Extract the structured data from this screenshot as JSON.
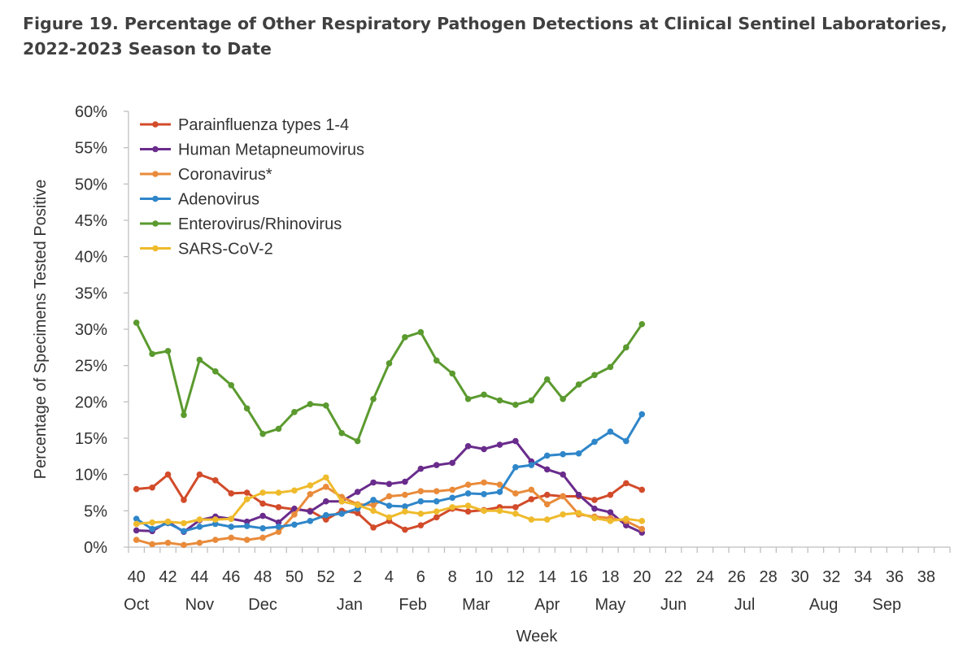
{
  "title_line1": "Figure 19. Percentage of Other Respiratory Pathogen Detections at Clinical Sentinel Laboratories,",
  "title_line2": "2022-2023 Season to Date",
  "chart_data": {
    "type": "line",
    "title": "Figure 19. Percentage of Other Respiratory Pathogen Detections at Clinical Sentinel Laboratories, 2022-2023 Season to Date",
    "xlabel": "Week",
    "ylabel": "Percentage of Specimens Tested Positive",
    "ylim": [
      0,
      60
    ],
    "y_ticks": [
      "0%",
      "5%",
      "10%",
      "15%",
      "20%",
      "25%",
      "30%",
      "35%",
      "40%",
      "45%",
      "50%",
      "55%",
      "60%"
    ],
    "x_weeks": [
      40,
      41,
      42,
      43,
      44,
      45,
      46,
      47,
      48,
      49,
      50,
      51,
      52,
      1,
      2,
      3,
      4,
      5,
      6,
      7,
      8,
      9,
      10,
      11,
      12,
      13,
      14,
      15,
      16,
      17,
      18,
      19,
      20
    ],
    "x_tick_labels": [
      "40",
      "42",
      "44",
      "46",
      "48",
      "50",
      "52",
      "2",
      "4",
      "6",
      "8",
      "10",
      "12",
      "14",
      "16",
      "18",
      "20",
      "22",
      "24",
      "26",
      "28",
      "30",
      "32",
      "34",
      "36",
      "38"
    ],
    "month_labels": [
      "Oct",
      "Nov",
      "Dec",
      "Jan",
      "Feb",
      "Mar",
      "Apr",
      "May",
      "Jun",
      "Jul",
      "Aug",
      "Sep"
    ],
    "legend_position": "top-left",
    "grid": false,
    "series": [
      {
        "name": "Parainfluenza types 1-4",
        "color": "#d24b2a",
        "values": [
          8.0,
          8.2,
          10.0,
          6.5,
          10.0,
          9.2,
          7.4,
          7.5,
          6.0,
          5.5,
          5.2,
          5.0,
          3.8,
          5.0,
          4.7,
          2.7,
          3.6,
          2.4,
          3.0,
          4.1,
          5.3,
          4.9,
          5.1,
          5.5,
          5.5,
          6.6,
          7.2,
          7.0,
          7.0,
          6.5,
          7.2,
          8.8,
          7.9
        ]
      },
      {
        "name": "Human Metapneumovirus",
        "color": "#6a2c8c",
        "values": [
          2.3,
          2.2,
          3.5,
          2.1,
          3.7,
          4.2,
          3.9,
          3.5,
          4.3,
          3.4,
          5.3,
          4.9,
          6.3,
          6.3,
          7.6,
          8.9,
          8.7,
          9.0,
          10.8,
          11.3,
          11.6,
          13.9,
          13.5,
          14.1,
          14.6,
          11.8,
          10.7,
          10.0,
          7.2,
          5.3,
          4.8,
          3.0,
          2.0
        ]
      },
      {
        "name": "Coronavirus*",
        "color": "#e98b3a",
        "values": [
          1.0,
          0.4,
          0.6,
          0.3,
          0.6,
          1.0,
          1.3,
          1.0,
          1.3,
          2.1,
          4.5,
          7.3,
          8.3,
          6.9,
          5.9,
          5.8,
          7.0,
          7.2,
          7.7,
          7.7,
          7.9,
          8.6,
          8.9,
          8.6,
          7.4,
          7.9,
          5.9,
          7.0,
          4.5,
          4.2,
          4.0,
          3.6,
          2.5
        ]
      },
      {
        "name": "Adenovirus",
        "color": "#2f86c9",
        "values": [
          3.9,
          2.5,
          3.3,
          2.2,
          2.8,
          3.2,
          2.8,
          2.9,
          2.6,
          2.8,
          3.1,
          3.6,
          4.4,
          4.6,
          5.3,
          6.5,
          5.7,
          5.6,
          6.3,
          6.3,
          6.8,
          7.4,
          7.3,
          7.6,
          11.0,
          11.3,
          12.6,
          12.8,
          12.9,
          14.5,
          15.9,
          14.6,
          18.3
        ]
      },
      {
        "name": "Enterovirus/Rhinovirus",
        "color": "#5b9a2f",
        "values": [
          30.9,
          26.6,
          27.0,
          18.2,
          25.8,
          24.2,
          22.3,
          19.1,
          15.6,
          16.3,
          18.6,
          19.7,
          19.5,
          15.7,
          14.6,
          20.4,
          25.3,
          28.9,
          29.6,
          25.7,
          23.9,
          20.4,
          21.0,
          20.2,
          19.6,
          20.2,
          23.1,
          20.4,
          22.4,
          23.7,
          24.8,
          27.5,
          30.7
        ]
      },
      {
        "name": "SARS-CoV-2",
        "color": "#efbb2c",
        "values": [
          3.2,
          3.4,
          3.5,
          3.3,
          3.8,
          3.8,
          3.9,
          6.6,
          7.5,
          7.5,
          7.8,
          8.5,
          9.6,
          6.3,
          5.8,
          5.0,
          4.1,
          4.9,
          4.6,
          4.9,
          5.5,
          5.7,
          5.0,
          5.0,
          4.6,
          3.8,
          3.8,
          4.5,
          4.7,
          4.0,
          3.6,
          3.9,
          3.6
        ]
      }
    ]
  }
}
